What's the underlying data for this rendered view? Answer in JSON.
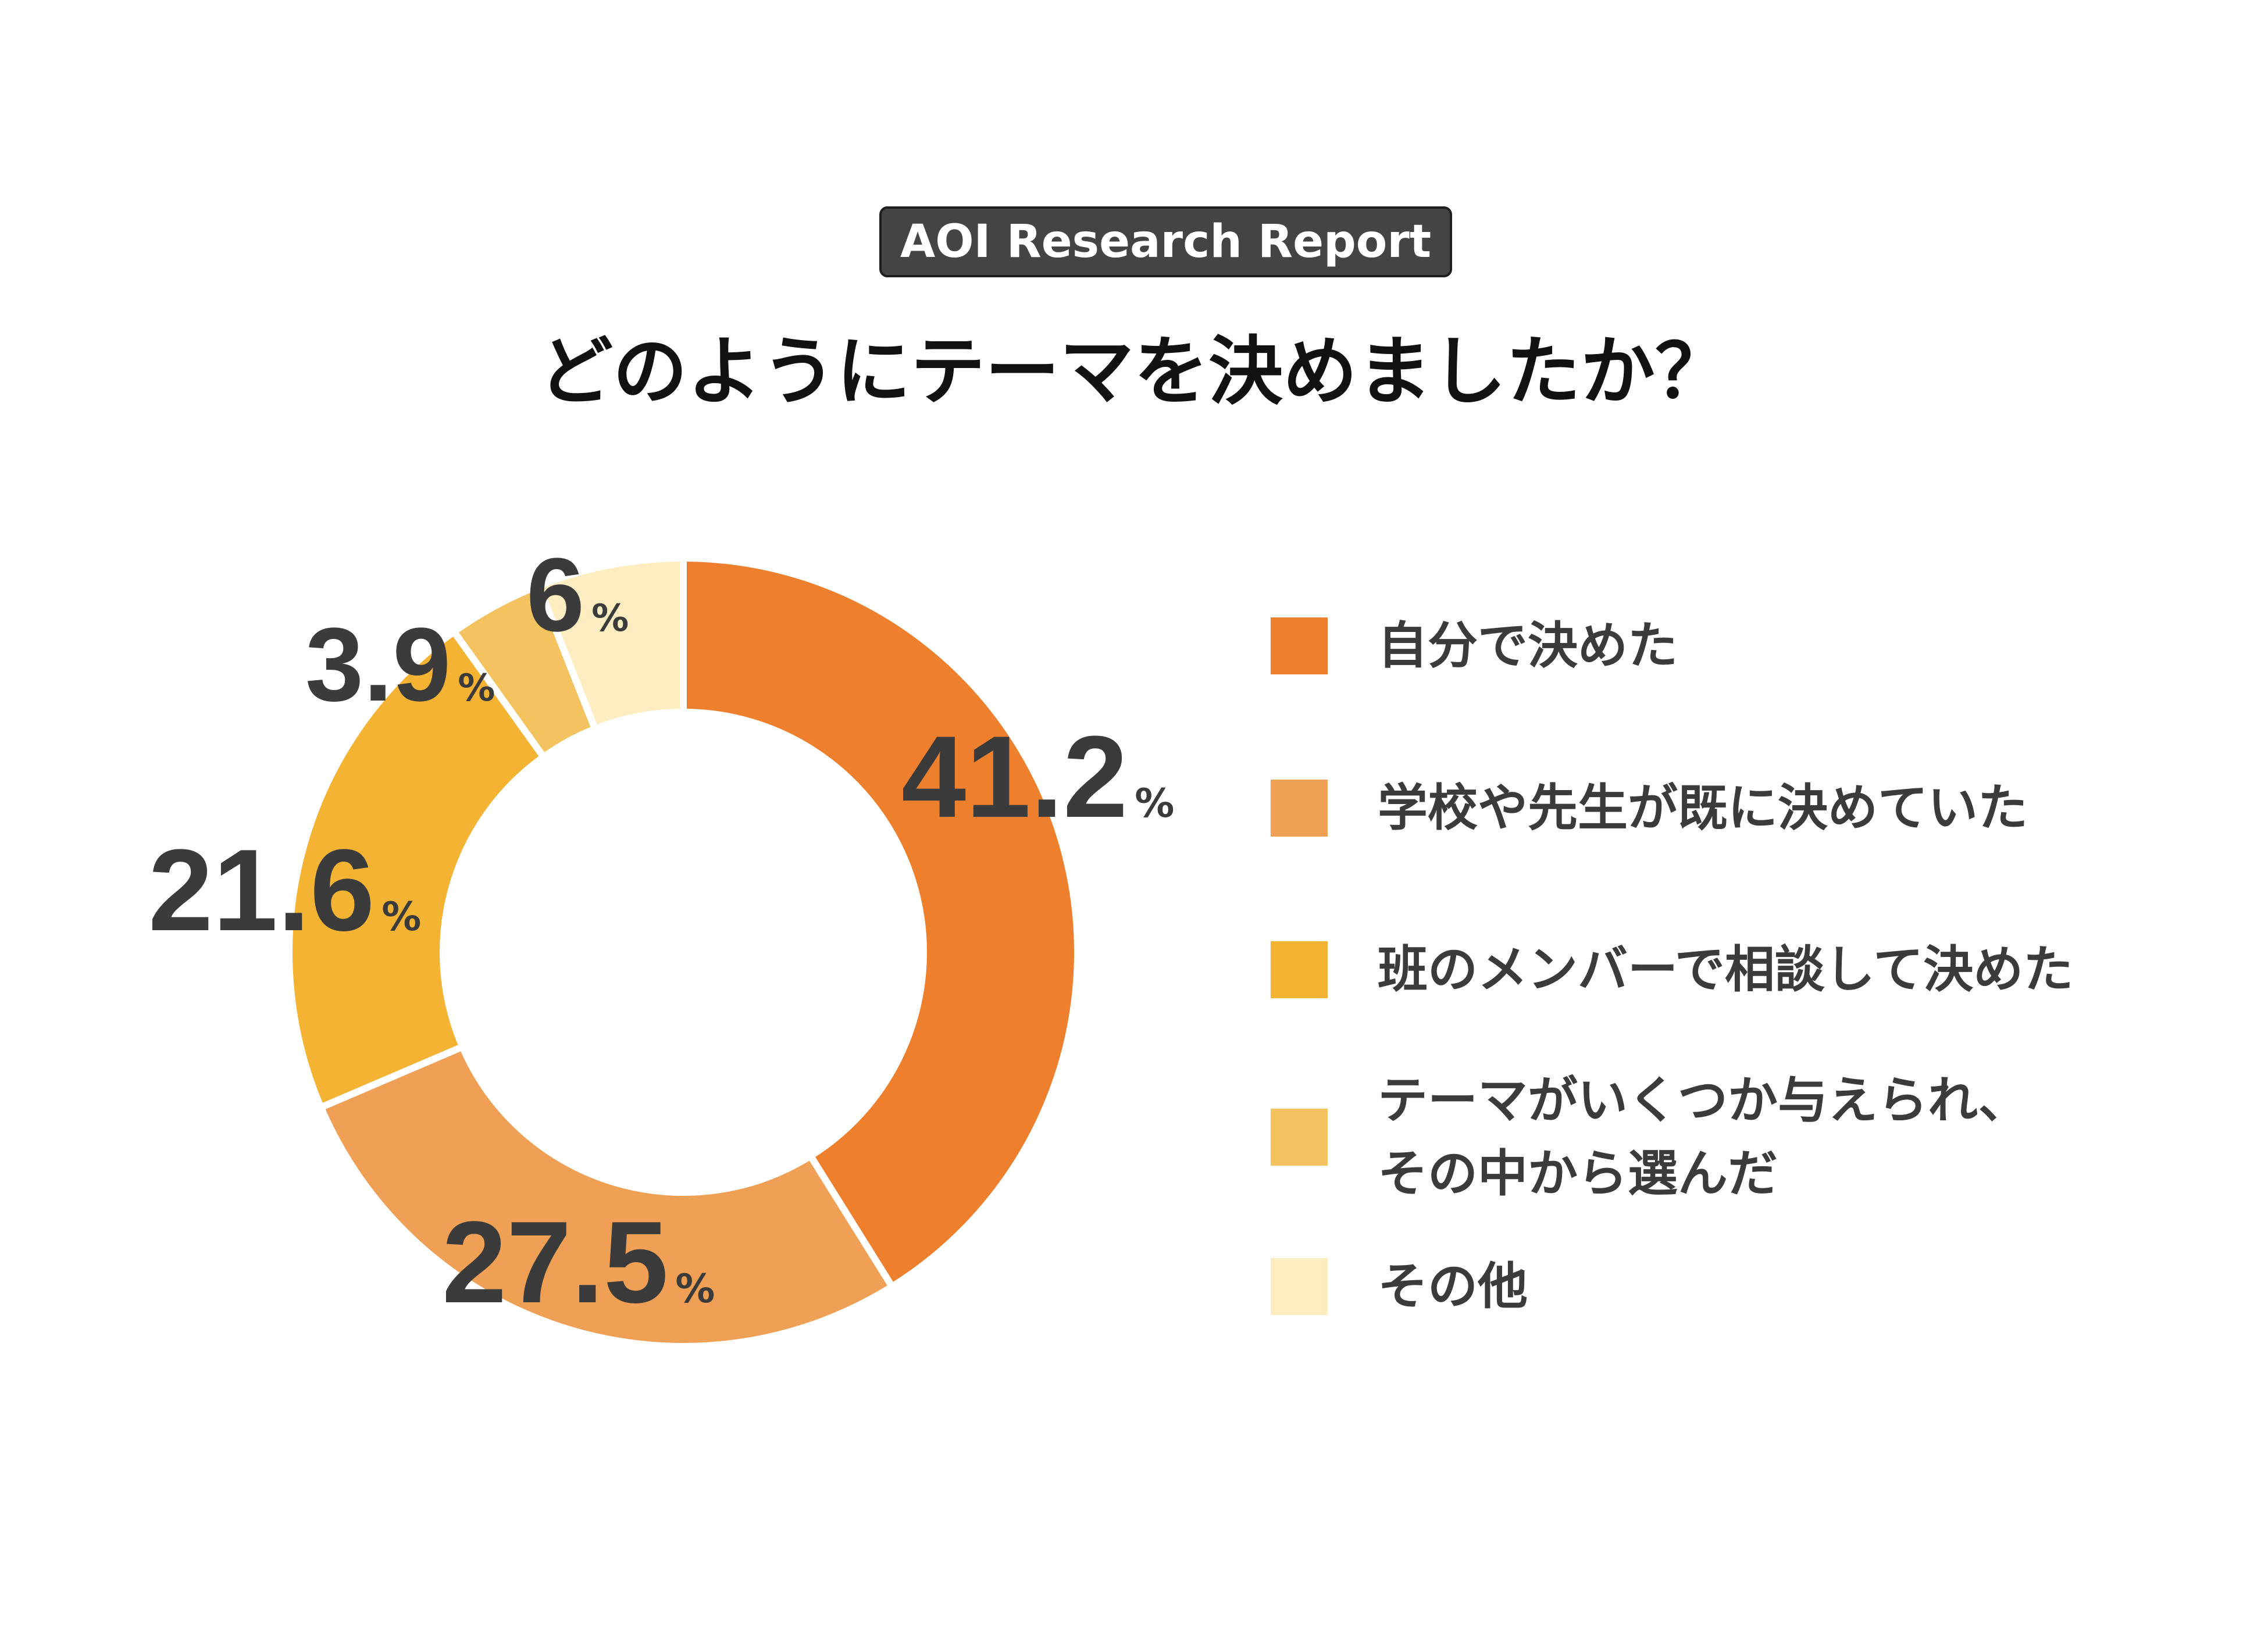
{
  "badge": "AOI Research Report",
  "title": "どのようにテーマを決めましたか？",
  "colors": {
    "background": "#ffffff",
    "badge_bg": "#444444",
    "text": "#3b3b3b"
  },
  "chart_data": {
    "type": "pie",
    "variant": "donut",
    "title": "どのようにテーマを決めましたか？",
    "unit": "%",
    "legend_position": "right",
    "slices": [
      {
        "label": "自分で決めた",
        "value": 41.2,
        "display": "41.2",
        "color": "#ee7f2d"
      },
      {
        "label": "学校や先生が既に決めていた",
        "value": 27.5,
        "display": "27.5",
        "color": "#efa055"
      },
      {
        "label": "班のメンバーで相談して決めた",
        "value": 21.6,
        "display": "21.6",
        "color": "#f5b333"
      },
      {
        "label": "テーマがいくつか与えられ、\nその中から選んだ",
        "value": 3.9,
        "display": "3.9",
        "color": "#f4c360"
      },
      {
        "label": "その他",
        "value": 6,
        "display": "6",
        "color": "#fdedc0"
      }
    ]
  }
}
